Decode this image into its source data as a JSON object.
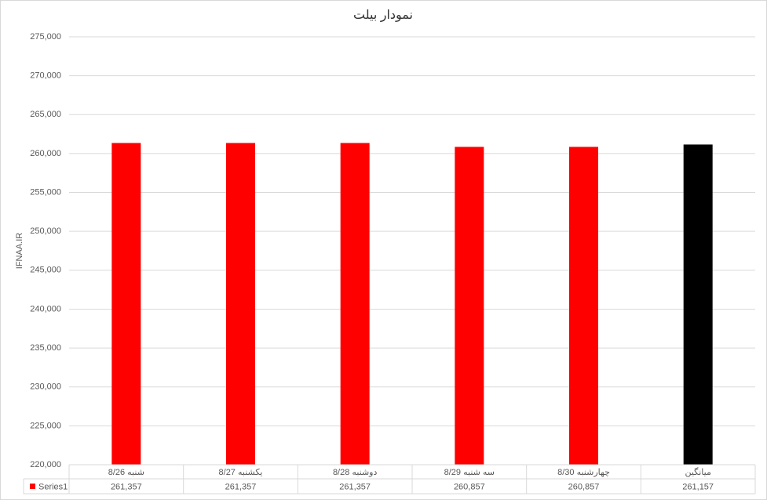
{
  "chart_data": {
    "type": "bar",
    "title": "نمودار بیلت",
    "y_label": "IFNAA.IR",
    "categories": [
      "شنبه 8/26",
      "یکشنبه 8/27",
      "دوشنبه 8/28",
      "سه شنبه 8/29",
      "چهارشنبه 8/30",
      "میانگین"
    ],
    "series": [
      {
        "name": "Series1",
        "color": "#ff0000",
        "colors": [
          "#ff0000",
          "#ff0000",
          "#ff0000",
          "#ff0000",
          "#ff0000",
          "#000000"
        ],
        "values": [
          261357,
          261357,
          261357,
          260857,
          260857,
          261157
        ],
        "value_labels": [
          "261,357",
          "261,357",
          "261,357",
          "260,857",
          "260,857",
          "261,157"
        ]
      }
    ],
    "ylim": [
      220000,
      275000
    ],
    "yticks": [
      {
        "value": 220000,
        "label": "220,000"
      },
      {
        "value": 225000,
        "label": "225,000"
      },
      {
        "value": 230000,
        "label": "230,000"
      },
      {
        "value": 235000,
        "label": "235,000"
      },
      {
        "value": 240000,
        "label": "240,000"
      },
      {
        "value": 245000,
        "label": "245,000"
      },
      {
        "value": 250000,
        "label": "250,000"
      },
      {
        "value": 255000,
        "label": "255,000"
      },
      {
        "value": 260000,
        "label": "260,000"
      },
      {
        "value": 265000,
        "label": "265,000"
      },
      {
        "value": 270000,
        "label": "270,000"
      },
      {
        "value": 275000,
        "label": "275,000"
      }
    ],
    "grid": true,
    "data_table": true
  }
}
